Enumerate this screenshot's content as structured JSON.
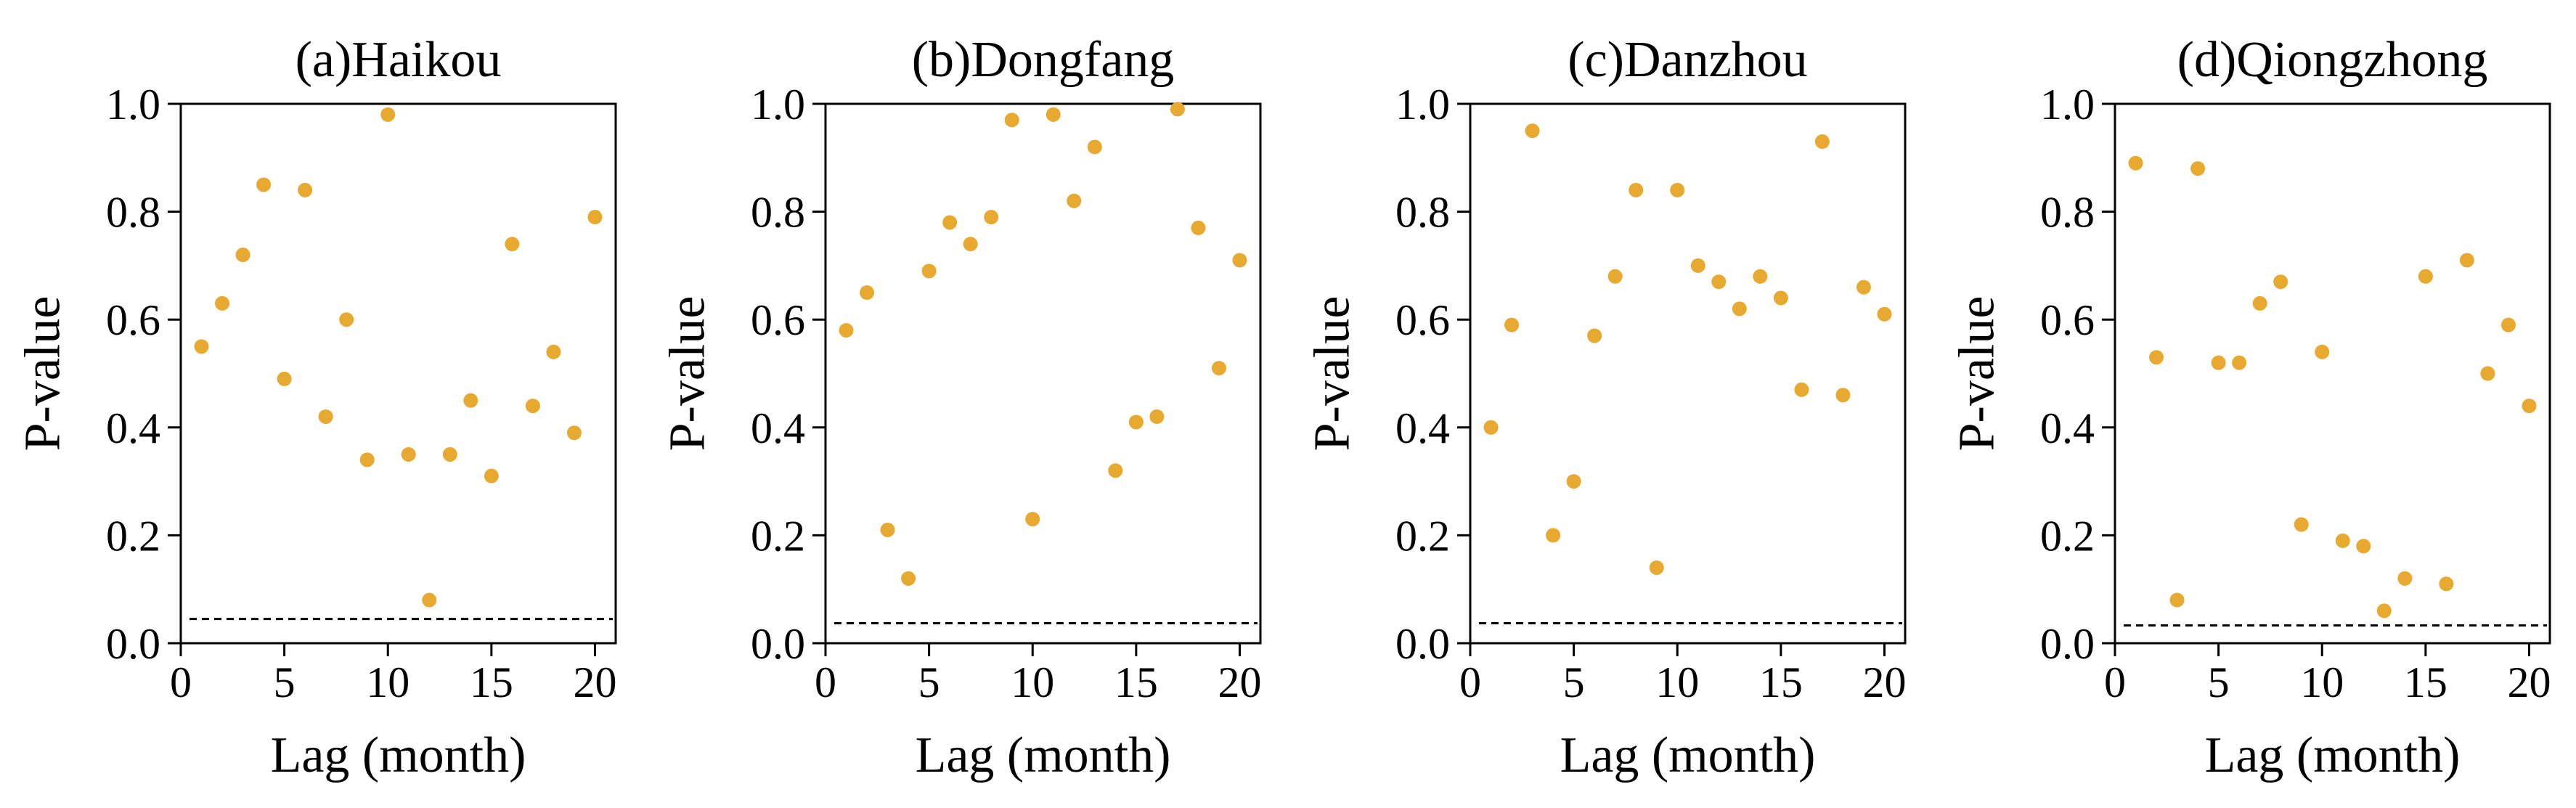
{
  "chart_data": [
    {
      "type": "scatter",
      "title": "(a)Haikou",
      "xlabel": "Lag (month)",
      "ylabel": "P-value",
      "xlim": [
        0,
        21
      ],
      "ylim": [
        0,
        1
      ],
      "xticks": [
        "0",
        "5",
        "10",
        "15",
        "20"
      ],
      "yticks": [
        "0.0",
        "0.2",
        "0.4",
        "0.6",
        "0.8",
        "1.0"
      ],
      "reference_line": 0.045,
      "color": "#e8a930",
      "grid": false,
      "x": [
        1,
        2,
        3,
        4,
        5,
        6,
        7,
        8,
        9,
        10,
        11,
        12,
        13,
        14,
        15,
        16,
        17,
        18,
        19,
        20
      ],
      "y": [
        0.55,
        0.63,
        0.72,
        0.85,
        0.49,
        0.84,
        0.42,
        0.6,
        0.34,
        0.98,
        0.35,
        0.08,
        0.35,
        0.45,
        0.31,
        0.74,
        0.44,
        0.54,
        0.39,
        0.79
      ]
    },
    {
      "type": "scatter",
      "title": "(b)Dongfang",
      "xlabel": "Lag (month)",
      "ylabel": "P-value",
      "xlim": [
        0,
        21
      ],
      "ylim": [
        0,
        1
      ],
      "xticks": [
        "0",
        "5",
        "10",
        "15",
        "20"
      ],
      "yticks": [
        "0.0",
        "0.2",
        "0.4",
        "0.6",
        "0.8",
        "1.0"
      ],
      "reference_line": 0.037,
      "color": "#e8a930",
      "grid": false,
      "x": [
        1,
        2,
        3,
        4,
        5,
        6,
        7,
        8,
        9,
        10,
        11,
        12,
        13,
        14,
        15,
        16,
        17,
        18,
        19,
        20
      ],
      "y": [
        0.58,
        0.65,
        0.21,
        0.12,
        0.69,
        0.78,
        0.74,
        0.79,
        0.97,
        0.23,
        0.98,
        0.82,
        0.92,
        0.32,
        0.41,
        0.42,
        0.99,
        0.77,
        0.51,
        0.71
      ]
    },
    {
      "type": "scatter",
      "title": "(c)Danzhou",
      "xlabel": "Lag (month)",
      "ylabel": "P-value",
      "xlim": [
        0,
        21
      ],
      "ylim": [
        0,
        1
      ],
      "xticks": [
        "0",
        "5",
        "10",
        "15",
        "20"
      ],
      "yticks": [
        "0.0",
        "0.2",
        "0.4",
        "0.6",
        "0.8",
        "1.0"
      ],
      "reference_line": 0.037,
      "color": "#e8a930",
      "grid": false,
      "x": [
        1,
        2,
        3,
        4,
        5,
        6,
        7,
        8,
        9,
        10,
        11,
        12,
        13,
        14,
        15,
        16,
        17,
        18,
        19,
        20
      ],
      "y": [
        0.4,
        0.59,
        0.95,
        0.2,
        0.3,
        0.57,
        0.68,
        0.84,
        0.14,
        0.84,
        0.7,
        0.67,
        0.62,
        0.68,
        0.64,
        0.47,
        0.93,
        0.46,
        0.66,
        0.61
      ]
    },
    {
      "type": "scatter",
      "title": "(d)Qiongzhong",
      "xlabel": "Lag (month)",
      "ylabel": "P-value",
      "xlim": [
        0,
        21
      ],
      "ylim": [
        0,
        1
      ],
      "xticks": [
        "0",
        "5",
        "10",
        "15",
        "20"
      ],
      "yticks": [
        "0.0",
        "0.2",
        "0.4",
        "0.6",
        "0.8",
        "1.0"
      ],
      "reference_line": 0.033,
      "color": "#e8a930",
      "grid": false,
      "x": [
        1,
        2,
        3,
        4,
        5,
        6,
        7,
        8,
        9,
        10,
        11,
        12,
        13,
        14,
        15,
        16,
        17,
        18,
        19,
        20
      ],
      "y": [
        0.89,
        0.53,
        0.08,
        0.88,
        0.52,
        0.52,
        0.63,
        0.67,
        0.22,
        0.54,
        0.19,
        0.18,
        0.06,
        0.12,
        0.68,
        0.11,
        0.71,
        0.5,
        0.59,
        0.44
      ]
    }
  ]
}
